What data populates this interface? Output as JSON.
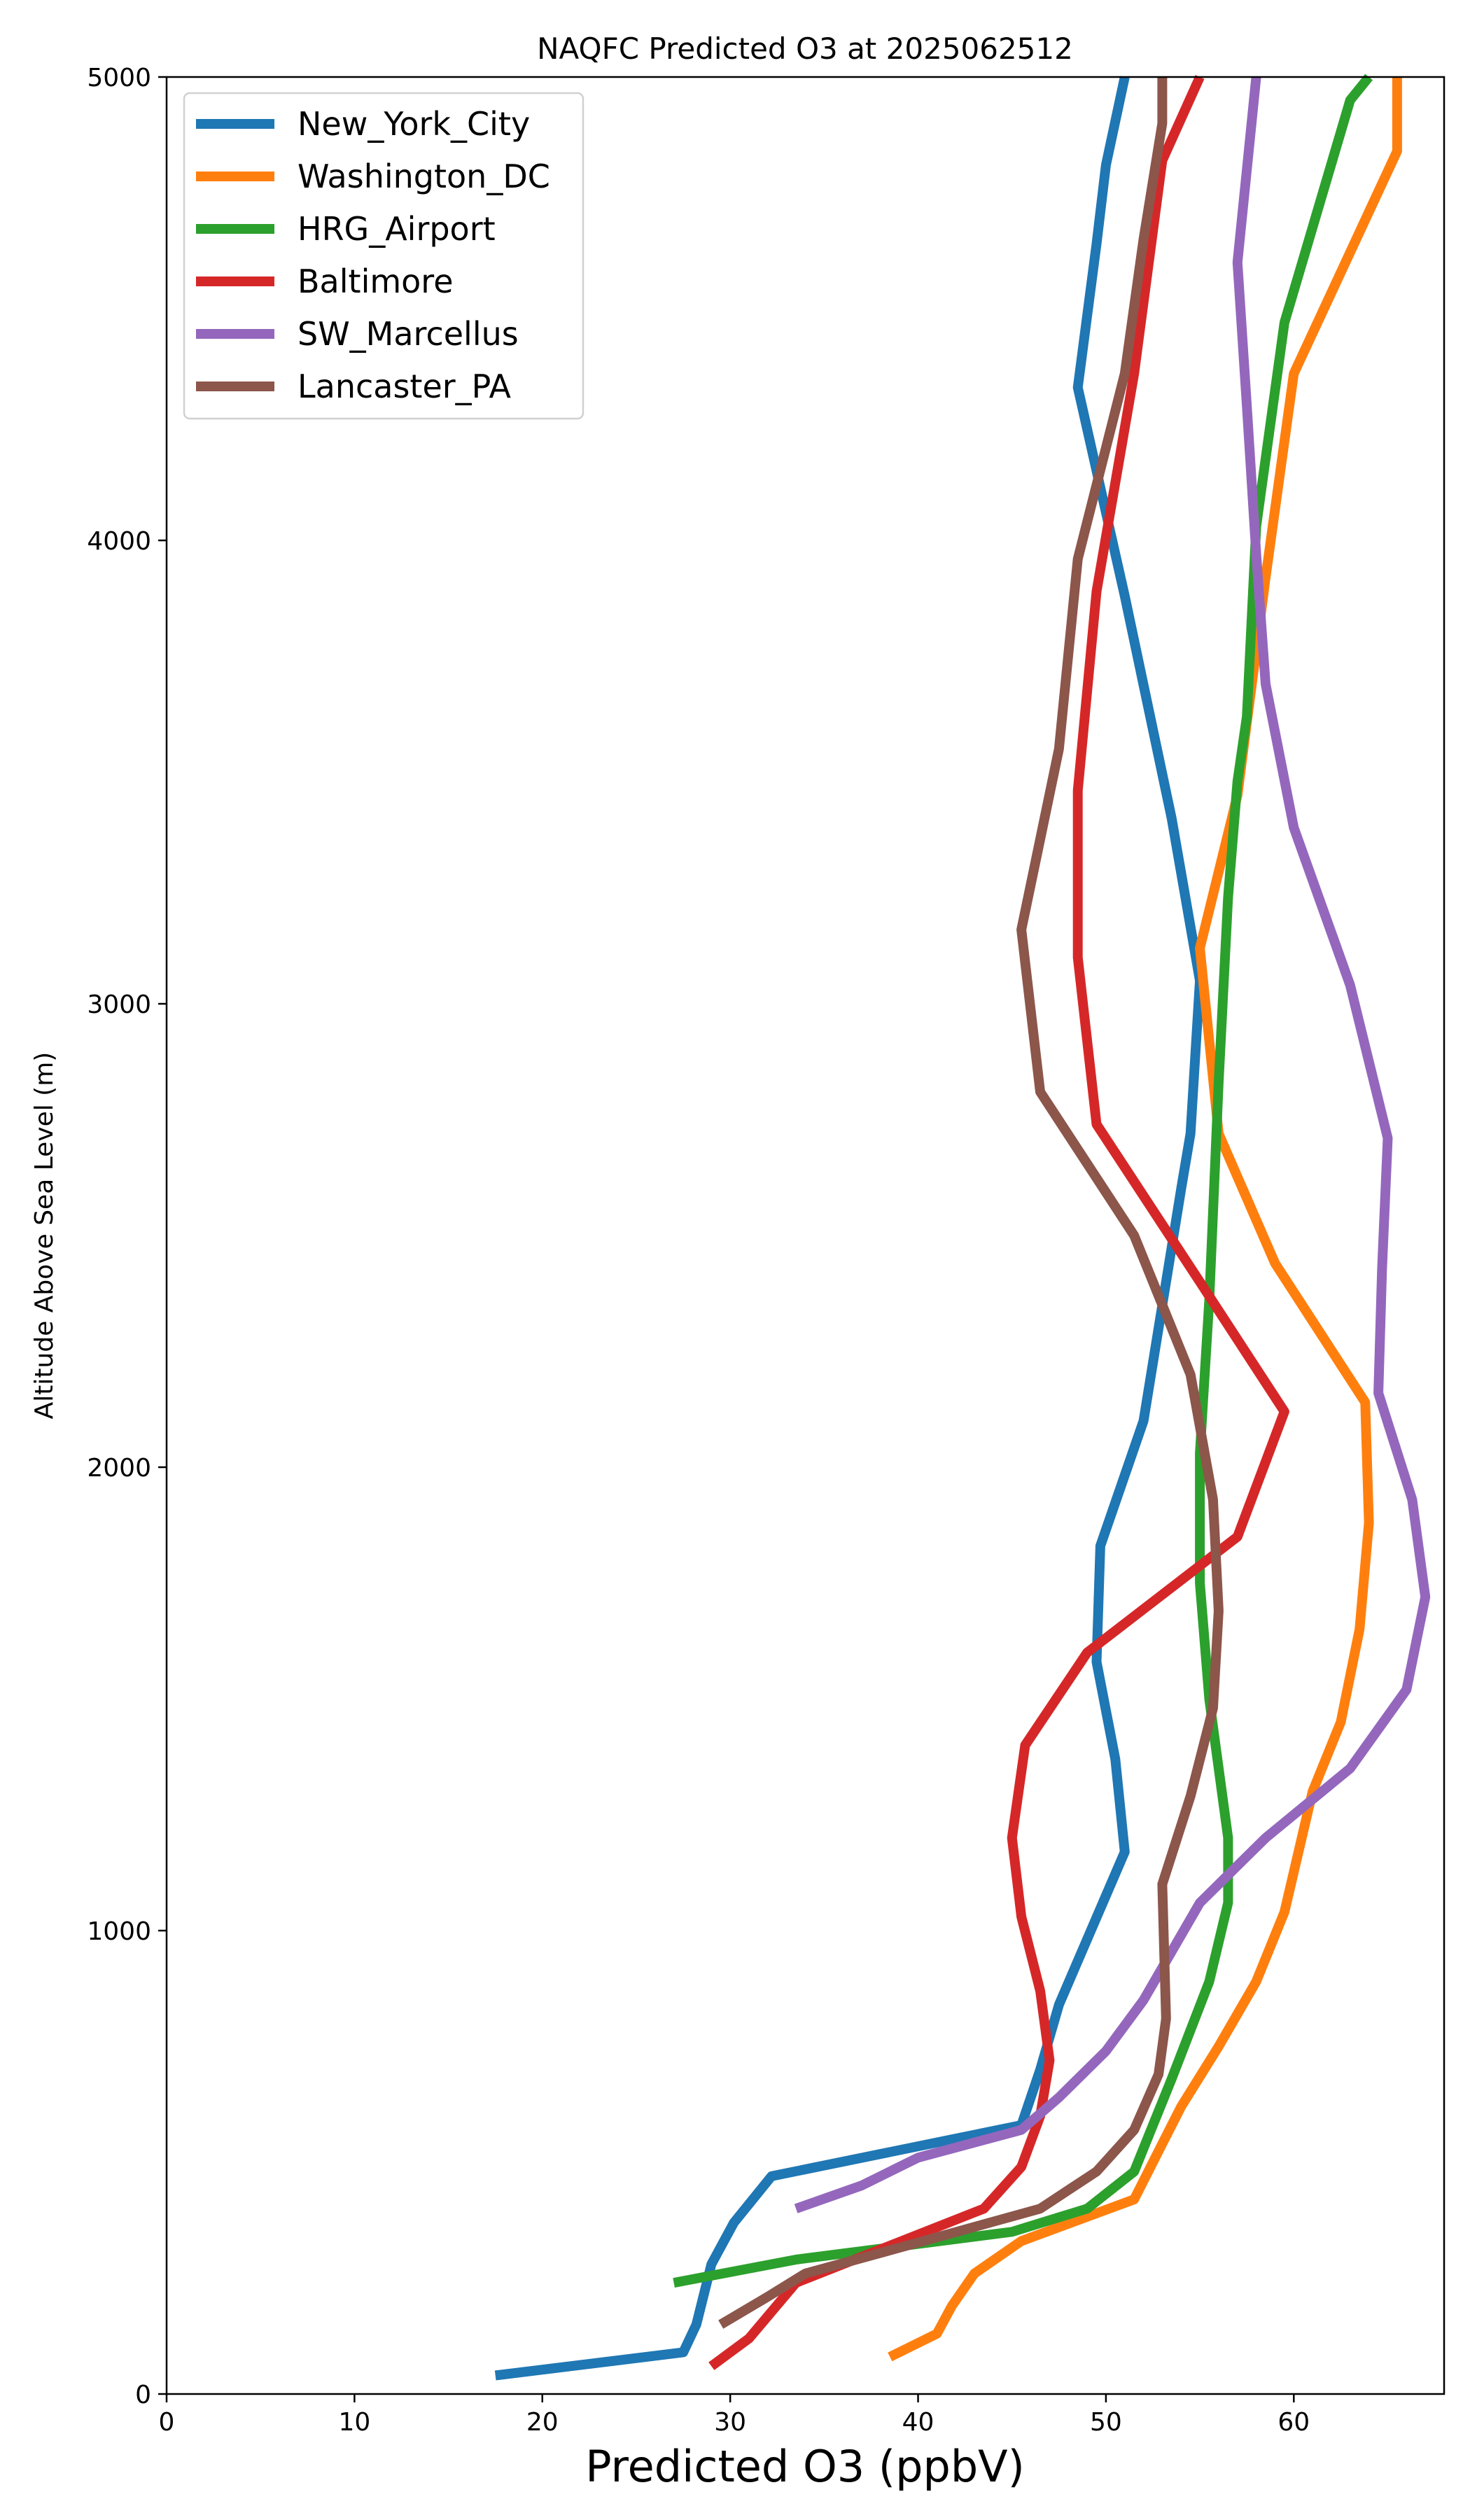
{
  "chart_data": {
    "type": "line",
    "title": "NAQFC Predicted O3 at 2025062512",
    "xlabel": "Predicted O3 (ppbV)",
    "ylabel": "Altitude Above Sea Level (m)",
    "xlim": [
      0,
      68
    ],
    "ylim": [
      0,
      5000
    ],
    "xticks": [
      0,
      10,
      20,
      30,
      40,
      50,
      60
    ],
    "yticks": [
      0,
      1000,
      2000,
      3000,
      4000,
      5000
    ],
    "grid": false,
    "legend_position": "upper-left",
    "series": [
      {
        "name": "New_York_City",
        "color": "#1f77b4",
        "points": [
          [
            17.5,
            40
          ],
          [
            27.5,
            90
          ],
          [
            28.2,
            150
          ],
          [
            29.0,
            280
          ],
          [
            30.2,
            370
          ],
          [
            32.2,
            470
          ],
          [
            45.5,
            580
          ],
          [
            46.5,
            700
          ],
          [
            47.5,
            840
          ],
          [
            51.0,
            1170
          ],
          [
            50.5,
            1370
          ],
          [
            49.5,
            1580
          ],
          [
            49.7,
            1830
          ],
          [
            52.0,
            2100
          ],
          [
            54.0,
            2600
          ],
          [
            54.5,
            2720
          ],
          [
            55.0,
            3050
          ],
          [
            53.5,
            3400
          ],
          [
            51.0,
            3880
          ],
          [
            48.5,
            4330
          ],
          [
            49.5,
            4640
          ],
          [
            50.0,
            4810
          ],
          [
            51.0,
            5000
          ]
        ]
      },
      {
        "name": "Washington_DC",
        "color": "#ff7f0e",
        "points": [
          [
            38.5,
            80
          ],
          [
            41.0,
            130
          ],
          [
            41.8,
            190
          ],
          [
            43.0,
            260
          ],
          [
            45.5,
            330
          ],
          [
            51.5,
            420
          ],
          [
            53.0,
            540
          ],
          [
            54.0,
            620
          ],
          [
            56.0,
            750
          ],
          [
            58.0,
            890
          ],
          [
            59.5,
            1040
          ],
          [
            61.0,
            1300
          ],
          [
            62.5,
            1450
          ],
          [
            63.5,
            1650
          ],
          [
            64.0,
            1880
          ],
          [
            63.8,
            2140
          ],
          [
            59.0,
            2440
          ],
          [
            56.0,
            2720
          ],
          [
            55.0,
            3120
          ],
          [
            57.0,
            3450
          ],
          [
            58.5,
            3920
          ],
          [
            60.0,
            4360
          ],
          [
            65.5,
            4840
          ],
          [
            65.5,
            5000
          ]
        ]
      },
      {
        "name": "HRG_Airport",
        "color": "#2ca02c",
        "points": [
          [
            27.0,
            240
          ],
          [
            33.5,
            290
          ],
          [
            45.0,
            350
          ],
          [
            49.0,
            400
          ],
          [
            51.5,
            480
          ],
          [
            53.5,
            680
          ],
          [
            55.5,
            890
          ],
          [
            56.5,
            1060
          ],
          [
            56.5,
            1200
          ],
          [
            55.5,
            1500
          ],
          [
            55.0,
            1750
          ],
          [
            55.0,
            2030
          ],
          [
            55.5,
            2360
          ],
          [
            56.0,
            2830
          ],
          [
            56.5,
            3230
          ],
          [
            57.0,
            3480
          ],
          [
            57.5,
            3620
          ],
          [
            58.0,
            4030
          ],
          [
            59.5,
            4470
          ],
          [
            63.0,
            4950
          ],
          [
            64.0,
            5000
          ]
        ]
      },
      {
        "name": "Baltimore",
        "color": "#d62728",
        "points": [
          [
            29.0,
            60
          ],
          [
            31.0,
            120
          ],
          [
            33.5,
            240
          ],
          [
            43.5,
            400
          ],
          [
            45.5,
            490
          ],
          [
            46.5,
            600
          ],
          [
            47.0,
            720
          ],
          [
            46.5,
            870
          ],
          [
            45.5,
            1030
          ],
          [
            45.0,
            1200
          ],
          [
            45.7,
            1400
          ],
          [
            49.0,
            1600
          ],
          [
            57.0,
            1850
          ],
          [
            59.5,
            2120
          ],
          [
            55.0,
            2400
          ],
          [
            49.5,
            2740
          ],
          [
            48.5,
            3100
          ],
          [
            48.5,
            3460
          ],
          [
            49.5,
            3890
          ],
          [
            51.5,
            4360
          ],
          [
            53.0,
            4820
          ],
          [
            55.0,
            5000
          ]
        ]
      },
      {
        "name": "SW_Marcellus",
        "color": "#9467bd",
        "points": [
          [
            33.5,
            400
          ],
          [
            37.0,
            450
          ],
          [
            40.0,
            510
          ],
          [
            45.5,
            570
          ],
          [
            47.5,
            640
          ],
          [
            50.0,
            740
          ],
          [
            52.0,
            850
          ],
          [
            55.0,
            1060
          ],
          [
            58.5,
            1200
          ],
          [
            63.0,
            1350
          ],
          [
            66.0,
            1520
          ],
          [
            67.0,
            1720
          ],
          [
            66.3,
            1930
          ],
          [
            64.5,
            2160
          ],
          [
            64.7,
            2430
          ],
          [
            65.0,
            2710
          ],
          [
            63.0,
            3040
          ],
          [
            60.0,
            3380
          ],
          [
            58.5,
            3690
          ],
          [
            58.0,
            3970
          ],
          [
            57.5,
            4290
          ],
          [
            57.0,
            4600
          ],
          [
            58.0,
            5000
          ]
        ]
      },
      {
        "name": "Lancaster_PA",
        "color": "#8c564b",
        "points": [
          [
            29.5,
            150
          ],
          [
            32.0,
            210
          ],
          [
            34.0,
            260
          ],
          [
            38.5,
            310
          ],
          [
            46.5,
            400
          ],
          [
            49.5,
            480
          ],
          [
            51.5,
            570
          ],
          [
            52.8,
            690
          ],
          [
            53.2,
            810
          ],
          [
            53.0,
            1100
          ],
          [
            54.5,
            1290
          ],
          [
            55.7,
            1480
          ],
          [
            56.0,
            1690
          ],
          [
            55.7,
            1930
          ],
          [
            54.5,
            2200
          ],
          [
            51.5,
            2500
          ],
          [
            46.5,
            2810
          ],
          [
            45.5,
            3160
          ],
          [
            47.5,
            3550
          ],
          [
            48.5,
            3960
          ],
          [
            51.0,
            4360
          ],
          [
            52.0,
            4650
          ],
          [
            53.0,
            4900
          ],
          [
            53.0,
            5000
          ]
        ]
      }
    ]
  }
}
